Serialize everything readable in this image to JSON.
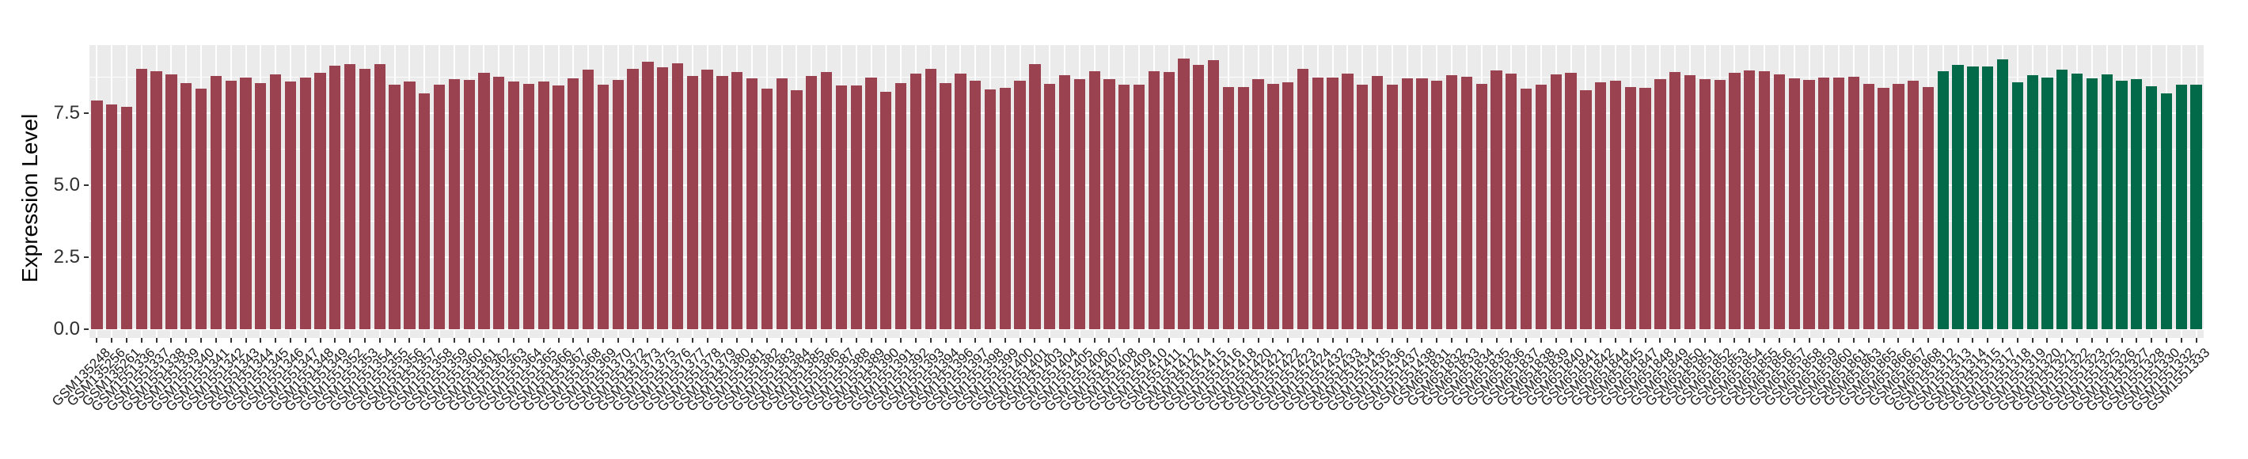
{
  "chart_data": {
    "type": "bar",
    "title": "",
    "xlabel": "",
    "ylabel": "Expression Level",
    "ytick_labels": [
      "0.0",
      "2.5",
      "5.0",
      "7.5"
    ],
    "ytick_values": [
      0.0,
      2.5,
      5.0,
      7.5
    ],
    "ylim": [
      -0.3,
      9.9
    ],
    "grid": "on",
    "legend": "none",
    "panel_background": "#EBEBEB",
    "gridline_color": "#FFFFFF",
    "bar_groups": [
      {
        "name": "group-red",
        "color": "#9A4250",
        "labels": [
          "GSM135248",
          "GSM135256",
          "GSM135261",
          "GSM1551336",
          "GSM1551337",
          "GSM1551338",
          "GSM1551339",
          "GSM1551340",
          "GSM1551341",
          "GSM1551342",
          "GSM1551343",
          "GSM1551344",
          "GSM1551345",
          "GSM1551346",
          "GSM1551347",
          "GSM1551348",
          "GSM1551349",
          "GSM1551352",
          "GSM1551353",
          "GSM1551354",
          "GSM1551355",
          "GSM1551356",
          "GSM1551357",
          "GSM1551358",
          "GSM1551359",
          "GSM1551360",
          "GSM1551361",
          "GSM1551362",
          "GSM1551363",
          "GSM1551364",
          "GSM1551365",
          "GSM1551366",
          "GSM1551367",
          "GSM1551368",
          "GSM1551369",
          "GSM1551370",
          "GSM1551372",
          "GSM1551373",
          "GSM1551375",
          "GSM1551376",
          "GSM1551377",
          "GSM1551378",
          "GSM1551379",
          "GSM1551380",
          "GSM1551381",
          "GSM1551382",
          "GSM1551383",
          "GSM1551384",
          "GSM1551385",
          "GSM1551386",
          "GSM1551387",
          "GSM1551388",
          "GSM1551389",
          "GSM1551390",
          "GSM1551391",
          "GSM1551392",
          "GSM1551393",
          "GSM1551394",
          "GSM1551396",
          "GSM1551397",
          "GSM1551398",
          "GSM1551399",
          "GSM1551400",
          "GSM1551401",
          "GSM1551403",
          "GSM1551404",
          "GSM1551405",
          "GSM1551406",
          "GSM1551407",
          "GSM1551408",
          "GSM1551409",
          "GSM1551410",
          "GSM1551411",
          "GSM1551412",
          "GSM1551414",
          "GSM1551415",
          "GSM1551416",
          "GSM1551418",
          "GSM1551420",
          "GSM1551421",
          "GSM1551422",
          "GSM1551423",
          "GSM1551424",
          "GSM1551432",
          "GSM1551433",
          "GSM1551434",
          "GSM1551435",
          "GSM1551436",
          "GSM1551437",
          "GSM1551438",
          "GSM651831",
          "GSM651832",
          "GSM651833",
          "GSM651834",
          "GSM651835",
          "GSM651836",
          "GSM651837",
          "GSM651838",
          "GSM651839",
          "GSM651840",
          "GSM651841",
          "GSM651842",
          "GSM651844",
          "GSM651845",
          "GSM651847",
          "GSM651848",
          "GSM651849",
          "GSM651850",
          "GSM651851",
          "GSM651852",
          "GSM651853",
          "GSM651854",
          "GSM651855",
          "GSM651856",
          "GSM651857",
          "GSM651858",
          "GSM651859",
          "GSM651860",
          "GSM651861",
          "GSM651863",
          "GSM651865",
          "GSM651866",
          "GSM651867",
          "GSM651868"
        ],
        "values": [
          7.96,
          7.82,
          7.73,
          9.04,
          8.98,
          8.86,
          8.55,
          8.37,
          8.8,
          8.64,
          8.74,
          8.55,
          8.86,
          8.62,
          8.74,
          8.91,
          9.17,
          9.22,
          9.06,
          9.22,
          8.49,
          8.62,
          8.19,
          8.49,
          8.69,
          8.66,
          8.92,
          8.78,
          8.61,
          8.53,
          8.61,
          8.46,
          8.72,
          9.03,
          8.51,
          8.67,
          9.05,
          9.3,
          9.11,
          9.25,
          8.8,
          9.03,
          8.79,
          8.93,
          8.72,
          8.35,
          8.71,
          8.31,
          8.8,
          8.93,
          8.47,
          8.48,
          8.76,
          8.25,
          8.56,
          8.89,
          9.05,
          8.55,
          8.89,
          8.64,
          8.34,
          8.4,
          8.64,
          9.21,
          8.53,
          8.82,
          8.7,
          8.96,
          8.69,
          8.49,
          8.5,
          8.98,
          8.94,
          9.42,
          9.19,
          9.36,
          8.42,
          8.41,
          8.68,
          8.54,
          8.58,
          9.04,
          8.75,
          8.76,
          8.89,
          8.5,
          8.79,
          8.49,
          8.71,
          8.72,
          8.64,
          8.84,
          8.78,
          8.52,
          9.0,
          8.89,
          8.37,
          8.51,
          8.86,
          8.92,
          8.32,
          8.58,
          8.64,
          8.42,
          8.39,
          8.68,
          8.94,
          8.82,
          8.68,
          8.66,
          8.91,
          9.0,
          8.96,
          8.86,
          8.72,
          8.66,
          8.74,
          8.75,
          8.78,
          8.53,
          8.39,
          8.53,
          8.64,
          8.42
        ]
      },
      {
        "name": "group-green",
        "color": "#026A48",
        "labels": [
          "GSM1551312",
          "GSM1551313",
          "GSM1551314",
          "GSM1551315",
          "GSM1551317",
          "GSM1551318",
          "GSM1551319",
          "GSM1551320",
          "GSM1551321",
          "GSM1551322",
          "GSM1551323",
          "GSM1551325",
          "GSM1551326",
          "GSM1551327",
          "GSM1551328",
          "GSM1551330",
          "GSM1551332",
          "GSM1551333"
        ],
        "values": [
          8.98,
          9.19,
          9.13,
          9.13,
          9.38,
          8.58,
          8.83,
          8.76,
          9.01,
          8.89,
          8.71,
          8.86,
          8.64,
          8.68,
          8.44,
          8.21,
          8.51,
          8.51
        ]
      }
    ]
  }
}
